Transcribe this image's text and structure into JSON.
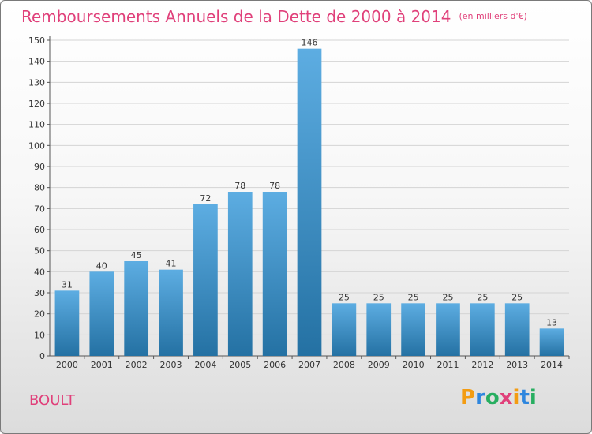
{
  "title": "Remboursements Annuels de la Dette de 2000 à 2014",
  "subtitle": "(en milliers d'€)",
  "town": "BOULT",
  "logo": {
    "text": "Proxiti",
    "letters": [
      {
        "ch": "P",
        "color": "#f39c12"
      },
      {
        "ch": "r",
        "color": "#2e86de"
      },
      {
        "ch": "o",
        "color": "#27ae60"
      },
      {
        "ch": "x",
        "color": "#e0407a"
      },
      {
        "ch": "i",
        "color": "#f39c12"
      },
      {
        "ch": "t",
        "color": "#2e86de"
      },
      {
        "ch": "i",
        "color": "#27ae60"
      }
    ]
  },
  "colors": {
    "title": "#e0407a",
    "bar_top": "#5dade2",
    "bar_bottom": "#2471a3",
    "grid": "#d4d4d4",
    "axis": "#555555"
  },
  "chart_data": {
    "type": "bar",
    "categories": [
      "2000",
      "2001",
      "2002",
      "2003",
      "2004",
      "2005",
      "2006",
      "2007",
      "2008",
      "2009",
      "2010",
      "2011",
      "2012",
      "2013",
      "2014"
    ],
    "values": [
      31,
      40,
      45,
      41,
      72,
      78,
      78,
      146,
      25,
      25,
      25,
      25,
      25,
      25,
      13
    ],
    "title": "Remboursements Annuels de la Dette de 2000 à 2014",
    "xlabel": "",
    "ylabel": "",
    "ylim": [
      0,
      150
    ],
    "yticks": [
      0,
      10,
      20,
      30,
      40,
      50,
      60,
      70,
      80,
      90,
      100,
      110,
      120,
      130,
      140,
      150
    ],
    "grid": true,
    "data_labels": true
  }
}
